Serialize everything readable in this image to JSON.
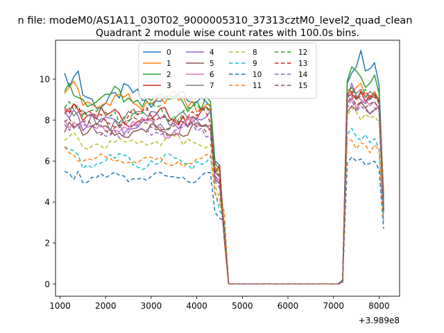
{
  "figure": {
    "suptitle": "n file: modeM0/AS1A11_030T02_9000005310_37313cztM0_level2_quad_clean"
  },
  "chart_data": {
    "type": "line",
    "title": "Quadrant 2 module wise count rates with 100.0s bins.",
    "xlabel": "",
    "ylabel": "",
    "x_offset_label": "+3.989e8",
    "xlim": [
      900,
      8450
    ],
    "ylim": [
      -0.6,
      11.9
    ],
    "xticks": [
      1000,
      2000,
      3000,
      4000,
      5000,
      6000,
      7000,
      8000
    ],
    "xtick_labels": [
      "1000",
      "2000",
      "3000",
      "4000",
      "5000",
      "6000",
      "7000",
      "8000"
    ],
    "yticks": [
      0,
      2,
      4,
      6,
      8,
      10
    ],
    "ytick_labels": [
      "0",
      "2",
      "4",
      "6",
      "8",
      "10"
    ],
    "grid": false,
    "legend": {
      "placement": "top-center",
      "columns": 4
    },
    "x_segments": [
      {
        "start": 1100,
        "end": 4300,
        "step": 100
      },
      {
        "start": 4400,
        "end": 4600,
        "step": 100
      },
      {
        "start": 4700,
        "end": 7100,
        "step": 100
      },
      {
        "start": 7200,
        "end": 8100,
        "step": 100
      }
    ],
    "series": [
      {
        "name": "0",
        "color": "#1f77b4",
        "dash": "solid",
        "base": 9.1,
        "amp": 0.6,
        "phase": 0.3,
        "first": [
          10.3,
          9.6,
          10.1,
          10.4
        ],
        "mid": [
          6.0,
          5.8,
          2.6
        ],
        "post": [
          0.2,
          9.8,
          10.3,
          10.6,
          11.4,
          10.4,
          10.5,
          10.8,
          9.7,
          4.2
        ]
      },
      {
        "name": "1",
        "color": "#ff7f0e",
        "dash": "solid",
        "base": 8.9,
        "amp": 0.5,
        "phase": 1.1,
        "first": [
          9.3,
          9.6,
          9.9,
          9.5
        ],
        "mid": [
          5.7,
          5.5,
          2.9
        ],
        "post": [
          0.1,
          9.5,
          9.3,
          9.6,
          9.8,
          9.2,
          9.0,
          9.4,
          9.0,
          4.5
        ]
      },
      {
        "name": "2",
        "color": "#2ca02c",
        "dash": "solid",
        "base": 9.0,
        "amp": 0.6,
        "phase": 2.0,
        "first": [
          9.4,
          9.8,
          9.2,
          9.1
        ],
        "mid": [
          5.9,
          5.6,
          2.4
        ],
        "post": [
          0.1,
          9.9,
          10.6,
          10.4,
          10.1,
          9.6,
          9.8,
          10.2,
          9.3,
          3.9
        ]
      },
      {
        "name": "3",
        "color": "#d62728",
        "dash": "solid",
        "base": 8.2,
        "amp": 0.5,
        "phase": 2.7,
        "first": [
          8.6,
          8.4,
          8.8,
          8.5
        ],
        "mid": [
          5.4,
          5.8,
          2.2
        ],
        "post": [
          0.1,
          9.1,
          9.3,
          9.0,
          9.4,
          8.9,
          9.2,
          9.1,
          9.0,
          3.5
        ]
      },
      {
        "name": "4",
        "color": "#9467bd",
        "dash": "solid",
        "base": 7.9,
        "amp": 0.5,
        "phase": 3.4,
        "first": [
          8.4,
          8.1,
          8.5,
          8.2
        ],
        "mid": [
          5.3,
          5.0,
          2.5
        ],
        "post": [
          0.1,
          9.0,
          9.8,
          9.2,
          9.0,
          8.8,
          9.1,
          9.3,
          8.9,
          3.7
        ]
      },
      {
        "name": "5",
        "color": "#8c564b",
        "dash": "solid",
        "base": 7.4,
        "amp": 0.4,
        "phase": 4.1,
        "first": [
          7.4,
          7.9,
          7.6,
          7.8
        ],
        "mid": [
          5.1,
          4.9,
          2.4
        ],
        "post": [
          0.1,
          8.4,
          8.7,
          8.5,
          8.9,
          8.6,
          8.3,
          8.5,
          8.7,
          3.6
        ]
      },
      {
        "name": "6",
        "color": "#e377c2",
        "dash": "solid",
        "base": 7.6,
        "amp": 0.5,
        "phase": 4.8,
        "first": [
          8.0,
          7.6,
          7.9,
          7.7
        ],
        "mid": [
          5.2,
          5.0,
          2.3
        ],
        "post": [
          0.1,
          8.8,
          9.1,
          8.6,
          8.8,
          9.0,
          8.7,
          8.9,
          8.6,
          3.6
        ]
      },
      {
        "name": "7",
        "color": "#7f7f7f",
        "dash": "solid",
        "base": 8.0,
        "amp": 0.5,
        "phase": 5.5,
        "first": [
          8.3,
          8.6,
          8.2,
          8.4
        ],
        "mid": [
          5.5,
          5.2,
          2.6
        ],
        "post": [
          0.1,
          9.2,
          9.6,
          9.3,
          9.5,
          9.1,
          9.4,
          9.2,
          9.0,
          3.8
        ]
      },
      {
        "name": "8",
        "color": "#bcbd22",
        "dash": "dash",
        "base": 6.9,
        "amp": 0.4,
        "phase": 0.9,
        "first": [
          7.0,
          7.2,
          7.4,
          7.1
        ],
        "mid": [
          4.8,
          4.2,
          2.8
        ],
        "post": [
          0.1,
          8.2,
          8.6,
          8.4,
          8.0,
          8.3,
          8.1,
          8.2,
          7.9,
          3.3
        ]
      },
      {
        "name": "9",
        "color": "#17becf",
        "dash": "dash",
        "base": 6.0,
        "amp": 0.4,
        "phase": 1.7,
        "first": [
          6.7,
          6.6,
          6.5,
          6.3
        ],
        "mid": [
          4.5,
          3.6,
          3.1
        ],
        "post": [
          0.1,
          7.3,
          7.6,
          7.2,
          7.0,
          7.3,
          6.9,
          7.1,
          6.6,
          3.0
        ]
      },
      {
        "name": "10",
        "color": "#1f77b4",
        "dash": "dash",
        "base": 5.2,
        "amp": 0.3,
        "phase": 2.5,
        "first": [
          5.5,
          5.4,
          5.1,
          5.5
        ],
        "mid": [
          3.5,
          3.2,
          3.1
        ],
        "post": [
          0.1,
          5.9,
          6.2,
          6.0,
          6.1,
          5.8,
          5.9,
          6.0,
          5.6,
          2.7
        ]
      },
      {
        "name": "11",
        "color": "#ff7f0e",
        "dash": "dash",
        "base": 6.0,
        "amp": 0.3,
        "phase": 3.2,
        "first": [
          6.7,
          6.4,
          6.3,
          6.0
        ],
        "mid": [
          4.4,
          3.9,
          3.6
        ],
        "post": [
          0.1,
          7.1,
          7.0,
          6.6,
          6.9,
          6.8,
          6.4,
          6.8,
          6.5,
          3.0
        ]
      },
      {
        "name": "12",
        "color": "#2ca02c",
        "dash": "dash",
        "base": 8.4,
        "amp": 0.5,
        "phase": 3.9,
        "first": [
          8.6,
          8.9,
          8.5,
          8.7
        ],
        "mid": [
          5.6,
          5.4,
          2.5
        ],
        "post": [
          0.1,
          9.4,
          9.6,
          9.1,
          9.3,
          9.5,
          9.0,
          9.2,
          8.8,
          3.8
        ]
      },
      {
        "name": "13",
        "color": "#d62728",
        "dash": "dash",
        "base": 8.2,
        "amp": 0.5,
        "phase": 4.6,
        "first": [
          8.5,
          8.3,
          8.8,
          8.6
        ],
        "mid": [
          5.5,
          5.3,
          2.4
        ],
        "post": [
          0.1,
          9.3,
          9.4,
          9.0,
          9.2,
          9.4,
          9.1,
          9.3,
          8.9,
          3.7
        ]
      },
      {
        "name": "14",
        "color": "#9467bd",
        "dash": "dash",
        "base": 7.5,
        "amp": 0.4,
        "phase": 5.3,
        "first": [
          7.8,
          7.5,
          7.7,
          7.6
        ],
        "mid": [
          5.0,
          4.7,
          2.3
        ],
        "post": [
          0.1,
          8.6,
          9.0,
          8.4,
          8.7,
          8.5,
          8.3,
          8.6,
          8.4,
          3.5
        ]
      },
      {
        "name": "15",
        "color": "#8c564b",
        "dash": "dash",
        "base": 7.7,
        "amp": 0.4,
        "phase": 6.0,
        "first": [
          7.9,
          8.1,
          7.7,
          7.8
        ],
        "mid": [
          5.1,
          4.9,
          2.4
        ],
        "post": [
          0.1,
          8.8,
          9.2,
          8.7,
          8.9,
          8.6,
          8.8,
          8.9,
          8.5,
          3.6
        ]
      }
    ]
  }
}
